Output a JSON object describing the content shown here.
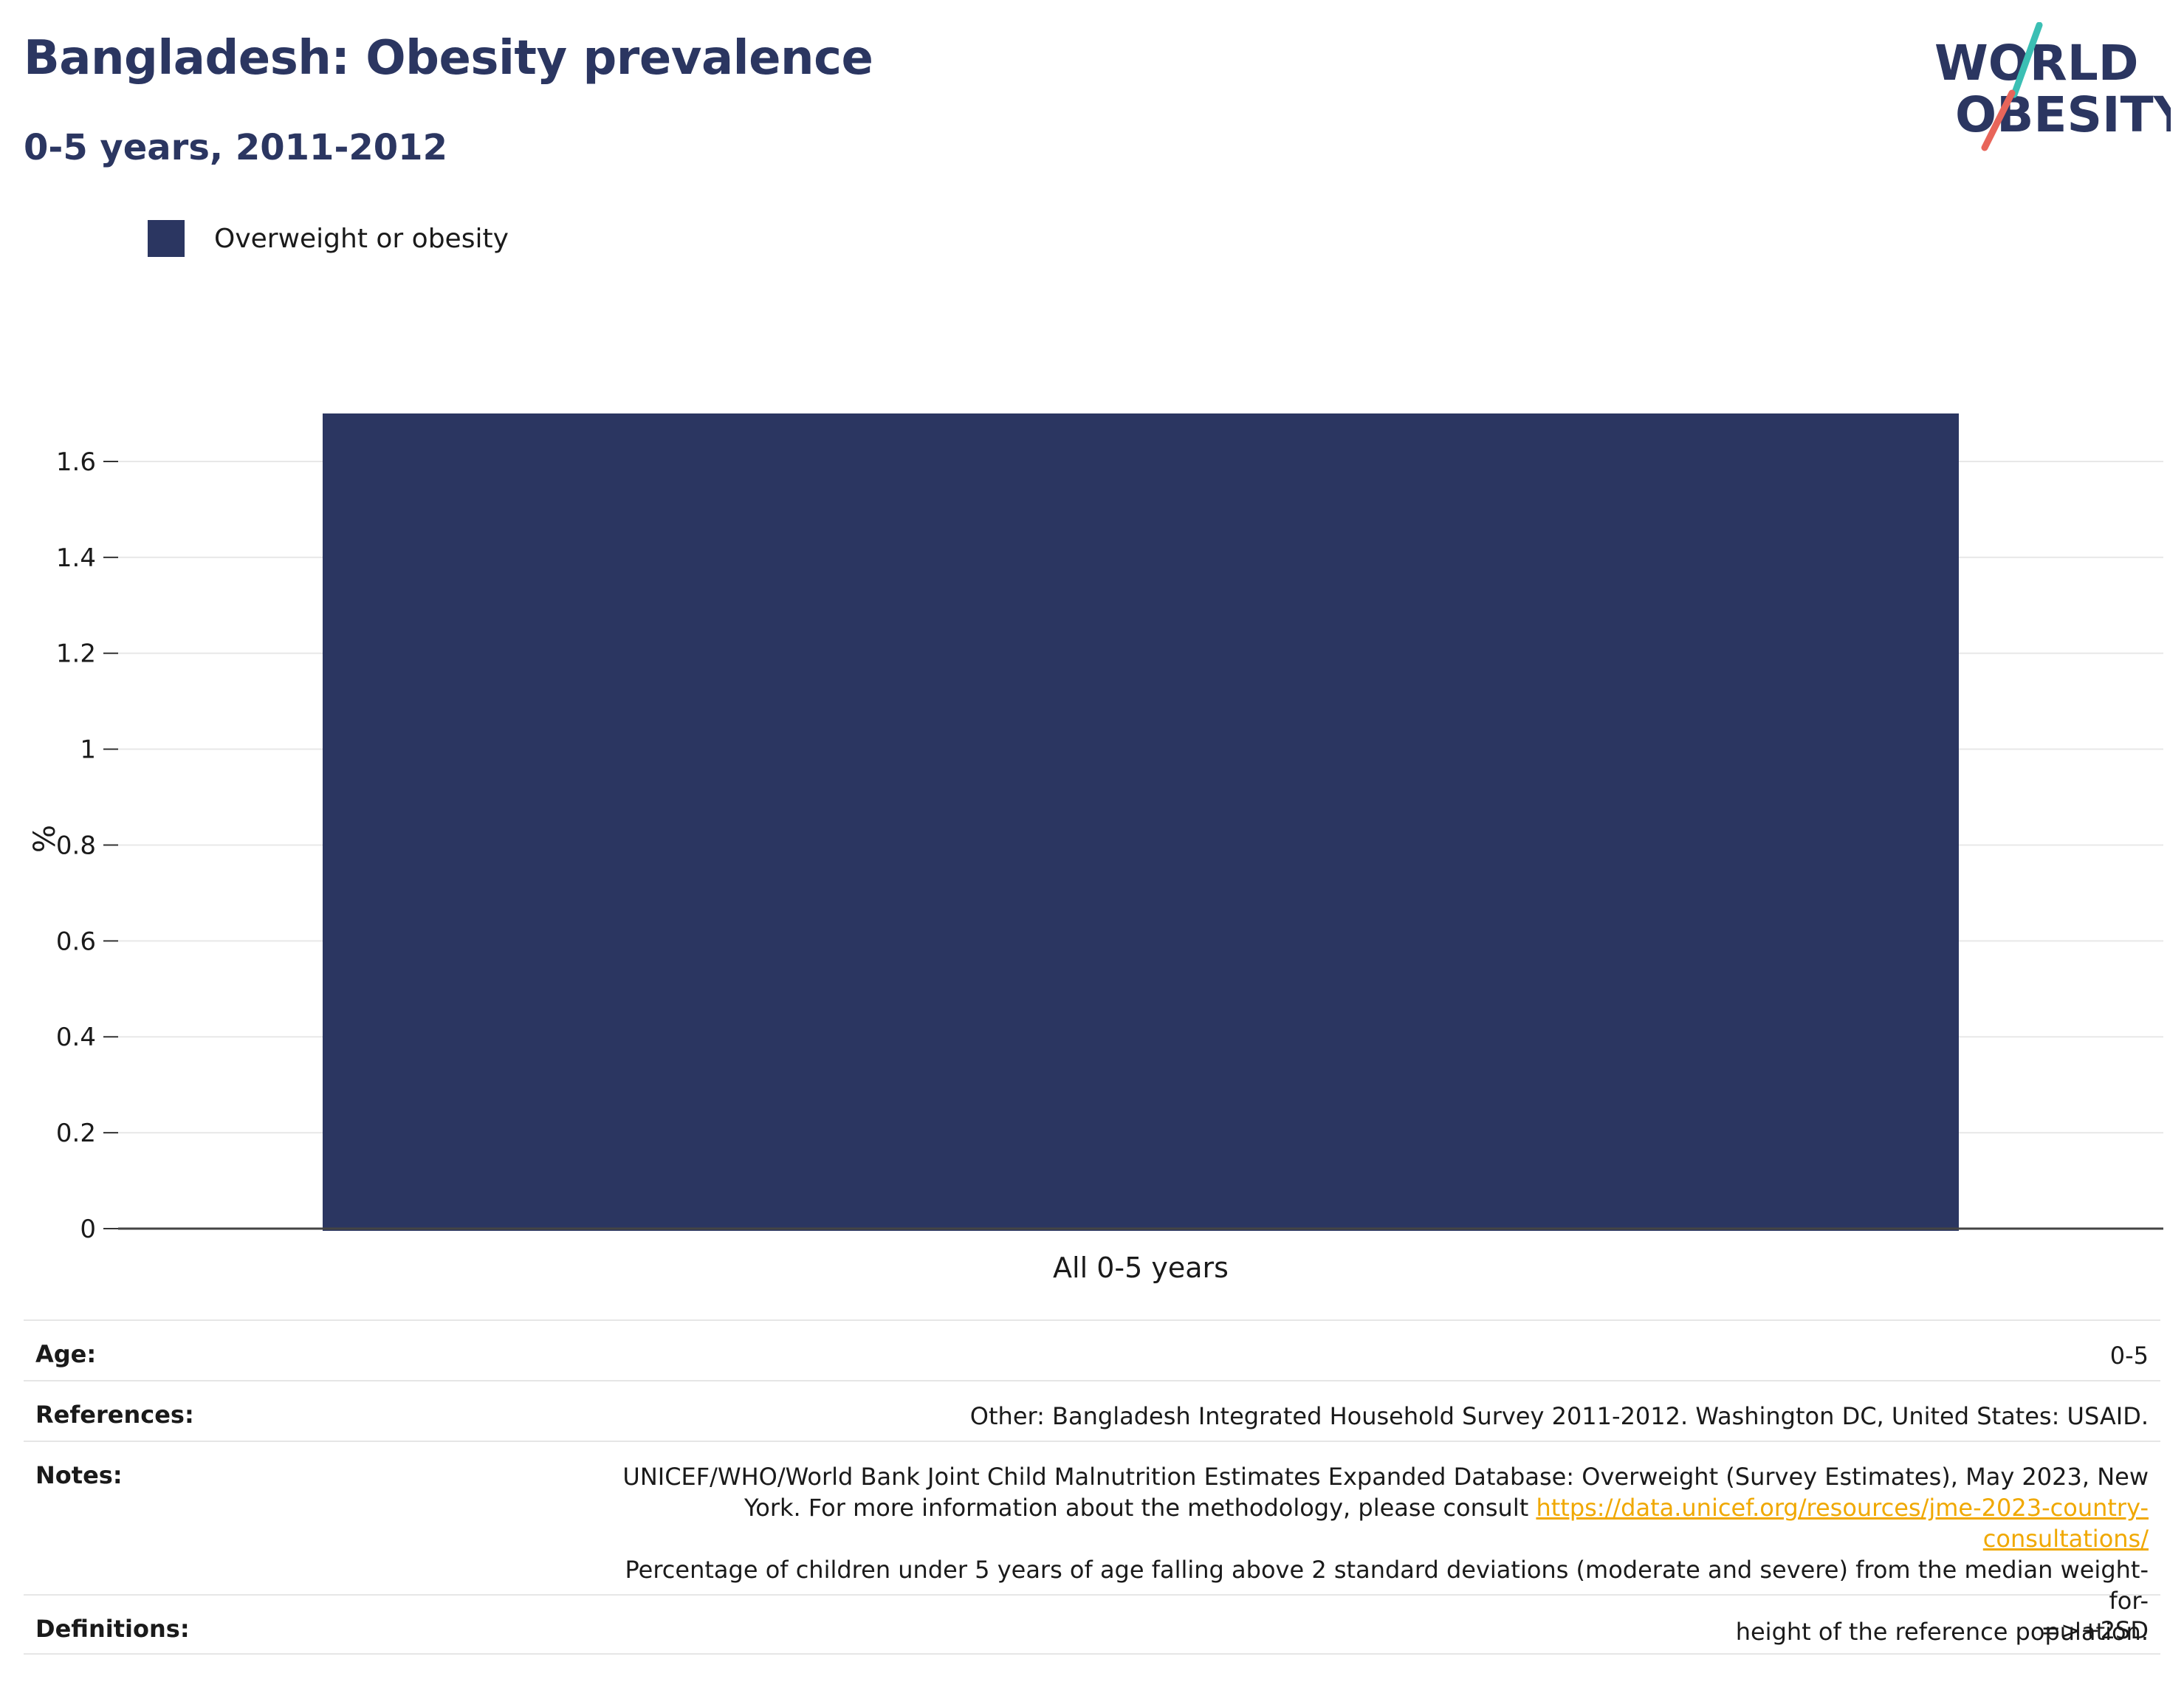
{
  "header": {
    "title": "Bangladesh: Obesity prevalence",
    "subtitle": "0-5 years, 2011-2012"
  },
  "logo": {
    "line1": "WORLD",
    "line2": "OBESITY",
    "colors": {
      "navy": "#2b3661",
      "teal": "#3bbfb4",
      "coral": "#e8655a"
    }
  },
  "chart_data": {
    "type": "bar",
    "categories": [
      "All 0-5 years"
    ],
    "series": [
      {
        "name": "Overweight or obesity",
        "values": [
          1.7
        ],
        "color": "#2b3661"
      }
    ],
    "ylabel": "%",
    "ylim": [
      0,
      1.7
    ],
    "yticks": [
      0,
      0.2,
      0.4,
      0.6,
      0.8,
      1,
      1.2,
      1.4,
      1.6
    ],
    "ytick_labels": [
      "0",
      "0.2",
      "0.4",
      "0.6",
      "0.8",
      "1",
      "1.2",
      "1.4",
      "1.6"
    ],
    "grid": true,
    "legend": "top-left"
  },
  "meta": {
    "age": {
      "key": "Age:",
      "value": "0-5"
    },
    "references": {
      "key": "References:",
      "value": "Other: Bangladesh Integrated Household Survey 2011-2012. Washington DC, United States: USAID."
    },
    "notes": {
      "key": "Notes:",
      "line1": "UNICEF/WHO/World Bank Joint Child Malnutrition Estimates Expanded Database: Overweight (Survey Estimates), May 2023, New",
      "line2_text": "York. For more information about the methodology, please consult ",
      "link": "https://data.unicef.org/resources/jme-2023-country-consultations/",
      "line3": "Percentage of children under 5 years of age falling above 2 standard deviations (moderate and severe) from the median weight-for-",
      "line4": "height of the reference population."
    },
    "definitions": {
      "key": "Definitions:",
      "value": "=>+2SD"
    }
  }
}
